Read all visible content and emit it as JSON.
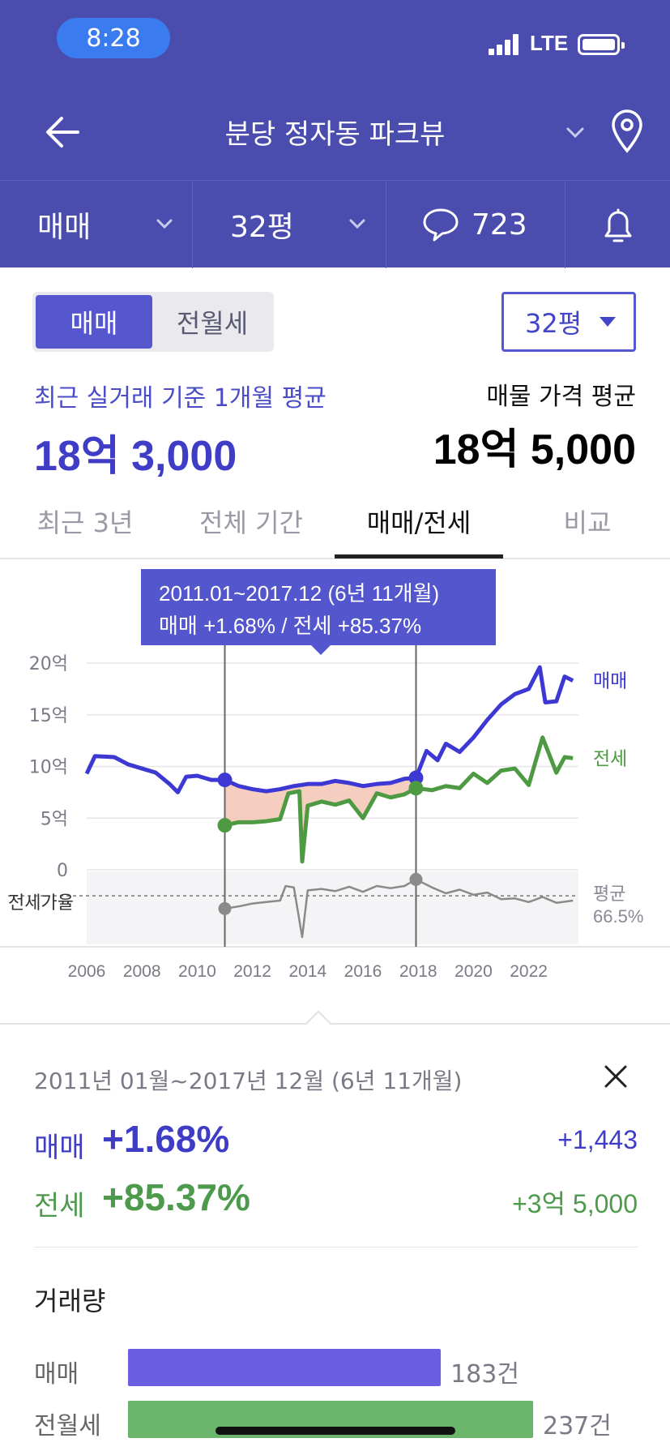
{
  "status": {
    "time": "8:28",
    "network": "LTE"
  },
  "nav": {
    "title": "분당 정자동 파크뷰"
  },
  "filters": {
    "deal_type": "매매",
    "size": "32평",
    "comments": "723"
  },
  "segment": {
    "options": [
      "매매",
      "전월세"
    ],
    "selected": "매매"
  },
  "size_select": "32평",
  "summary": {
    "recent_label": "최근 실거래 기준 1개월 평균",
    "recent_value": "18억 3,000",
    "listing_label": "매물 가격 평균",
    "listing_value": "18억 5,000"
  },
  "tabs": [
    {
      "label": "최근 3년",
      "active": false
    },
    {
      "label": "전체 기간",
      "active": false
    },
    {
      "label": "매매/전세",
      "active": true
    },
    {
      "label": "비교",
      "active": false
    }
  ],
  "tooltip": {
    "line1": "2011.01~2017.12 (6년 11개월)",
    "line2": "매매 +1.68%  /  전세 +85.37%"
  },
  "chart_data": {
    "type": "line",
    "x_ticks": [
      "2006",
      "2008",
      "2010",
      "2012",
      "2014",
      "2016",
      "2018",
      "2020",
      "2022"
    ],
    "y_ticks": [
      "20억",
      "15억",
      "10억",
      "5억",
      "0"
    ],
    "ylim": [
      0,
      20
    ],
    "colors": {
      "sale": "#3d38d3",
      "jeonse": "#4e9a42",
      "ratio": "#8a8a8a",
      "fill": "#f5c5b5"
    },
    "series": [
      {
        "name": "매매",
        "x": [
          2006.0,
          2006.3,
          2007.0,
          2007.5,
          2008.0,
          2008.5,
          2009.0,
          2009.3,
          2009.6,
          2010.0,
          2010.5,
          2011.0,
          2011.5,
          2012.0,
          2012.5,
          2013.0,
          2013.5,
          2014.0,
          2014.5,
          2015.0,
          2015.5,
          2016.0,
          2016.5,
          2017.0,
          2017.5,
          2017.92,
          2018.3,
          2018.7,
          2019.0,
          2019.5,
          2020.0,
          2020.5,
          2021.0,
          2021.5,
          2022.0,
          2022.4,
          2022.6,
          2023.0,
          2023.3,
          2023.6
        ],
        "y": [
          9.3,
          11.0,
          10.9,
          10.2,
          9.8,
          9.4,
          8.3,
          7.5,
          9.0,
          9.1,
          8.7,
          8.7,
          8.1,
          7.8,
          7.6,
          7.8,
          8.1,
          8.3,
          8.3,
          8.6,
          8.4,
          8.1,
          8.3,
          8.4,
          8.8,
          8.9,
          11.5,
          10.6,
          12.2,
          11.4,
          12.8,
          14.5,
          16.0,
          17.0,
          17.5,
          19.6,
          16.2,
          16.3,
          18.7,
          18.3
        ]
      },
      {
        "name": "전세",
        "x": [
          2011.0,
          2011.5,
          2012.0,
          2012.5,
          2013.0,
          2013.3,
          2013.7,
          2013.8,
          2014.0,
          2014.5,
          2015.0,
          2015.5,
          2016.0,
          2016.5,
          2017.0,
          2017.5,
          2017.92,
          2018.5,
          2019.0,
          2019.5,
          2020.0,
          2020.5,
          2021.0,
          2021.5,
          2022.0,
          2022.5,
          2023.0,
          2023.3,
          2023.6
        ],
        "y": [
          4.3,
          4.6,
          4.6,
          4.7,
          4.9,
          7.4,
          7.6,
          0.8,
          6.2,
          6.6,
          6.3,
          6.7,
          5.0,
          7.4,
          7.0,
          7.3,
          7.9,
          7.7,
          8.1,
          7.9,
          9.3,
          8.4,
          9.6,
          9.8,
          8.2,
          12.8,
          9.4,
          10.9,
          10.8
        ]
      },
      {
        "name": "전세가율",
        "x": [
          2011.0,
          2011.5,
          2012.0,
          2012.5,
          2013.0,
          2013.2,
          2013.5,
          2013.8,
          2014.0,
          2014.5,
          2015.0,
          2015.5,
          2016.0,
          2016.5,
          2017.0,
          2017.5,
          2017.92,
          2018.5,
          2019.0,
          2019.5,
          2020.0,
          2020.5,
          2021.0,
          2021.5,
          2022.0,
          2022.5,
          2023.0,
          2023.6
        ],
        "y": [
          49,
          52,
          56,
          58,
          60,
          80,
          78,
          10,
          74,
          76,
          73,
          79,
          72,
          80,
          77,
          80,
          89,
          78,
          70,
          75,
          68,
          71,
          62,
          63,
          58,
          65,
          57,
          60
        ]
      }
    ],
    "selection": {
      "start": 2011.0,
      "end": 2017.92
    },
    "ratio_avg_label": "평균\n66.5%",
    "ratio_label": "전세가율",
    "series_labels": [
      "매매",
      "전세"
    ]
  },
  "detail": {
    "period": "2011년 01월~2017년 12월 (6년 11개월)",
    "sale_label": "매매",
    "sale_pct": "+1.68%",
    "sale_amount": "+1,443",
    "jeonse_label": "전세",
    "jeonse_pct": "+85.37%",
    "jeonse_amount": "+3억 5,000"
  },
  "volume": {
    "title": "거래량",
    "rows": [
      {
        "label": "매매",
        "value": "183건",
        "count": 183,
        "color": "#6b5ee0"
      },
      {
        "label": "전월세",
        "value": "237건",
        "count": 237,
        "color": "#6ab56b"
      }
    ]
  }
}
